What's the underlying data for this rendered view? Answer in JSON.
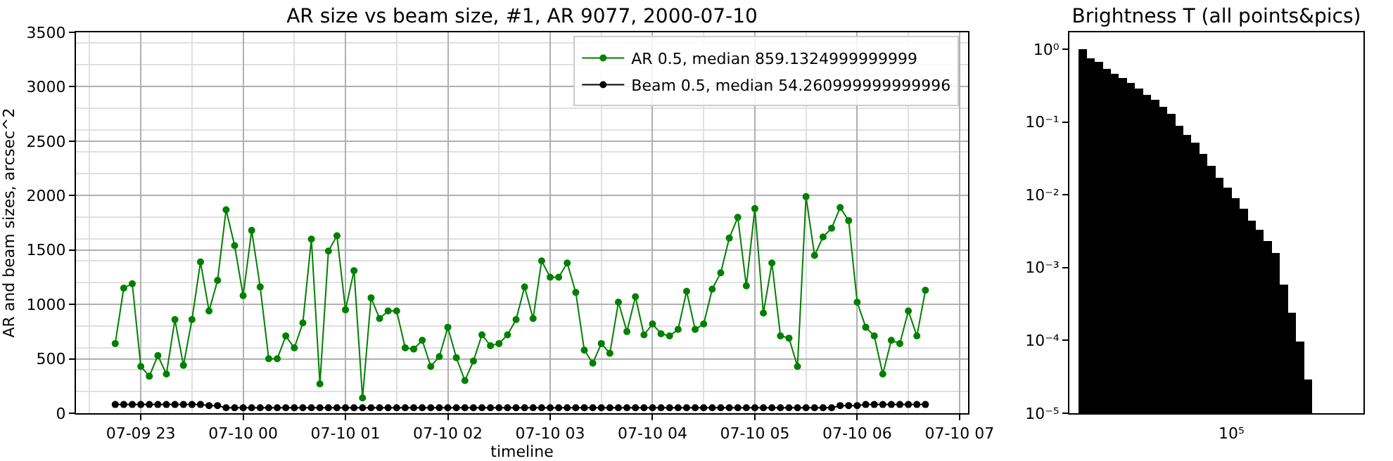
{
  "chart_data": [
    {
      "type": "line",
      "title": "AR size vs beam size, #1, AR 9077, 2000-07-10",
      "xlabel": "timeline",
      "ylabel": "AR and beam sizes, arcsec^2",
      "x": [
        "2000-07-09T22:45",
        "2000-07-09T22:50",
        "2000-07-09T22:55",
        "2000-07-09T23:00",
        "2000-07-09T23:05",
        "2000-07-09T23:10",
        "2000-07-09T23:15",
        "2000-07-09T23:20",
        "2000-07-09T23:25",
        "2000-07-09T23:30",
        "2000-07-09T23:35",
        "2000-07-09T23:40",
        "2000-07-09T23:45",
        "2000-07-09T23:50",
        "2000-07-09T23:55",
        "2000-07-10T00:00",
        "2000-07-10T00:05",
        "2000-07-10T00:10",
        "2000-07-10T00:15",
        "2000-07-10T00:20",
        "2000-07-10T00:25",
        "2000-07-10T00:30",
        "2000-07-10T00:35",
        "2000-07-10T00:40",
        "2000-07-10T00:45",
        "2000-07-10T00:50",
        "2000-07-10T00:55",
        "2000-07-10T01:00",
        "2000-07-10T01:05",
        "2000-07-10T01:10",
        "2000-07-10T01:15",
        "2000-07-10T01:20",
        "2000-07-10T01:25",
        "2000-07-10T01:30",
        "2000-07-10T01:35",
        "2000-07-10T01:40",
        "2000-07-10T01:45",
        "2000-07-10T01:50",
        "2000-07-10T01:55",
        "2000-07-10T02:00",
        "2000-07-10T02:05",
        "2000-07-10T02:10",
        "2000-07-10T02:15",
        "2000-07-10T02:20",
        "2000-07-10T02:25",
        "2000-07-10T02:30",
        "2000-07-10T02:35",
        "2000-07-10T02:40",
        "2000-07-10T02:45",
        "2000-07-10T02:50",
        "2000-07-10T02:55",
        "2000-07-10T03:00",
        "2000-07-10T03:05",
        "2000-07-10T03:10",
        "2000-07-10T03:15",
        "2000-07-10T03:20",
        "2000-07-10T03:25",
        "2000-07-10T03:30",
        "2000-07-10T03:35",
        "2000-07-10T03:40",
        "2000-07-10T03:45",
        "2000-07-10T03:50",
        "2000-07-10T03:55",
        "2000-07-10T04:00",
        "2000-07-10T04:05",
        "2000-07-10T04:10",
        "2000-07-10T04:15",
        "2000-07-10T04:20",
        "2000-07-10T04:25",
        "2000-07-10T04:30",
        "2000-07-10T04:35",
        "2000-07-10T04:40",
        "2000-07-10T04:45",
        "2000-07-10T04:50",
        "2000-07-10T04:55",
        "2000-07-10T05:00",
        "2000-07-10T05:05",
        "2000-07-10T05:10",
        "2000-07-10T05:15",
        "2000-07-10T05:20",
        "2000-07-10T05:25",
        "2000-07-10T05:30",
        "2000-07-10T05:35",
        "2000-07-10T05:40",
        "2000-07-10T05:45",
        "2000-07-10T05:50",
        "2000-07-10T05:55",
        "2000-07-10T06:00",
        "2000-07-10T06:05",
        "2000-07-10T06:10",
        "2000-07-10T06:15",
        "2000-07-10T06:20",
        "2000-07-10T06:25",
        "2000-07-10T06:30",
        "2000-07-10T06:35",
        "2000-07-10T06:40"
      ],
      "series": [
        {
          "name": "AR 0.5, median 859.1324999999999",
          "color": "#008000",
          "values": [
            640,
            1150,
            1190,
            430,
            340,
            530,
            360,
            860,
            440,
            860,
            1390,
            940,
            1220,
            1870,
            1540,
            1080,
            1680,
            1160,
            500,
            500,
            710,
            600,
            830,
            1600,
            270,
            1490,
            1630,
            950,
            1310,
            140,
            1060,
            870,
            940,
            940,
            600,
            590,
            670,
            430,
            520,
            790,
            510,
            300,
            480,
            720,
            620,
            640,
            720,
            860,
            1160,
            870,
            1400,
            1250,
            1250,
            1380,
            1110,
            580,
            460,
            640,
            550,
            1020,
            750,
            1070,
            720,
            820,
            730,
            710,
            770,
            1120,
            770,
            820,
            1140,
            1290,
            1610,
            1800,
            1170,
            1880,
            920,
            1380,
            710,
            690,
            430,
            1990,
            1450,
            1620,
            1700,
            1890,
            1770,
            1020,
            790,
            710,
            360,
            670,
            640,
            940,
            710,
            1130
          ]
        },
        {
          "name": "Beam 0.5, median 54.260999999999996",
          "color": "#000000",
          "values": [
            80,
            80,
            80,
            80,
            80,
            80,
            80,
            80,
            80,
            80,
            80,
            70,
            70,
            50,
            50,
            50,
            50,
            50,
            50,
            50,
            50,
            50,
            50,
            50,
            50,
            50,
            50,
            50,
            50,
            50,
            50,
            50,
            50,
            50,
            50,
            50,
            50,
            50,
            50,
            50,
            50,
            50,
            50,
            50,
            50,
            50,
            50,
            50,
            50,
            50,
            50,
            50,
            50,
            50,
            50,
            50,
            50,
            50,
            50,
            50,
            50,
            50,
            50,
            50,
            50,
            50,
            50,
            50,
            50,
            50,
            50,
            50,
            50,
            50,
            50,
            50,
            50,
            50,
            50,
            50,
            50,
            50,
            50,
            50,
            50,
            70,
            70,
            70,
            80,
            80,
            80,
            80,
            80,
            80,
            80,
            80
          ]
        }
      ],
      "xlim": [
        "2000-07-09T22:22",
        "2000-07-10T07:05"
      ],
      "xticks": [
        {
          "value": "2000-07-09T23:00",
          "label": "07-09 23"
        },
        {
          "value": "2000-07-10T00:00",
          "label": "07-10 00"
        },
        {
          "value": "2000-07-10T01:00",
          "label": "07-10 01"
        },
        {
          "value": "2000-07-10T02:00",
          "label": "07-10 02"
        },
        {
          "value": "2000-07-10T03:00",
          "label": "07-10 03"
        },
        {
          "value": "2000-07-10T04:00",
          "label": "07-10 04"
        },
        {
          "value": "2000-07-10T05:00",
          "label": "07-10 05"
        },
        {
          "value": "2000-07-10T06:00",
          "label": "07-10 06"
        },
        {
          "value": "2000-07-10T07:00",
          "label": "07-10 07"
        }
      ],
      "ylim": [
        0,
        3500
      ],
      "yticks": [
        0,
        500,
        1000,
        1500,
        2000,
        2500,
        3000,
        3500
      ],
      "grid": true,
      "legend": "top right",
      "marker": "circle",
      "line_style": "solid"
    },
    {
      "type": "bar",
      "title": "Brightness T (all points&pics)",
      "color": "#000000",
      "log": "y",
      "annotations": [
        "10⁵"
      ],
      "categories": [
        null,
        null,
        null,
        null,
        null,
        null,
        null,
        null,
        null,
        null,
        null,
        null,
        null,
        null,
        null,
        null,
        null,
        null,
        null,
        null,
        null,
        null,
        null,
        null,
        null,
        null,
        null,
        null,
        null
      ],
      "values": [
        1.0,
        0.75,
        0.67,
        0.54,
        0.46,
        0.4,
        0.34,
        0.29,
        0.235,
        0.2,
        0.16,
        0.13,
        0.089,
        0.066,
        0.052,
        0.036,
        0.025,
        0.017,
        0.0126,
        0.009,
        0.0064,
        0.0044,
        0.0033,
        0.0023,
        0.0016,
        0.00059,
        0.00024,
        9.7e-05,
        2.9e-05
      ],
      "ylim": [
        1e-05,
        1.7
      ],
      "yticks": [
        {
          "value": 1e-05,
          "label": "10⁻⁵"
        },
        {
          "value": 0.0001,
          "label": "10⁻⁴"
        },
        {
          "value": 0.001,
          "label": "10⁻³"
        },
        {
          "value": 0.01,
          "label": "10⁻²"
        },
        {
          "value": 0.1,
          "label": "10⁻¹"
        },
        {
          "value": 1,
          "label": "10⁰"
        }
      ]
    }
  ]
}
